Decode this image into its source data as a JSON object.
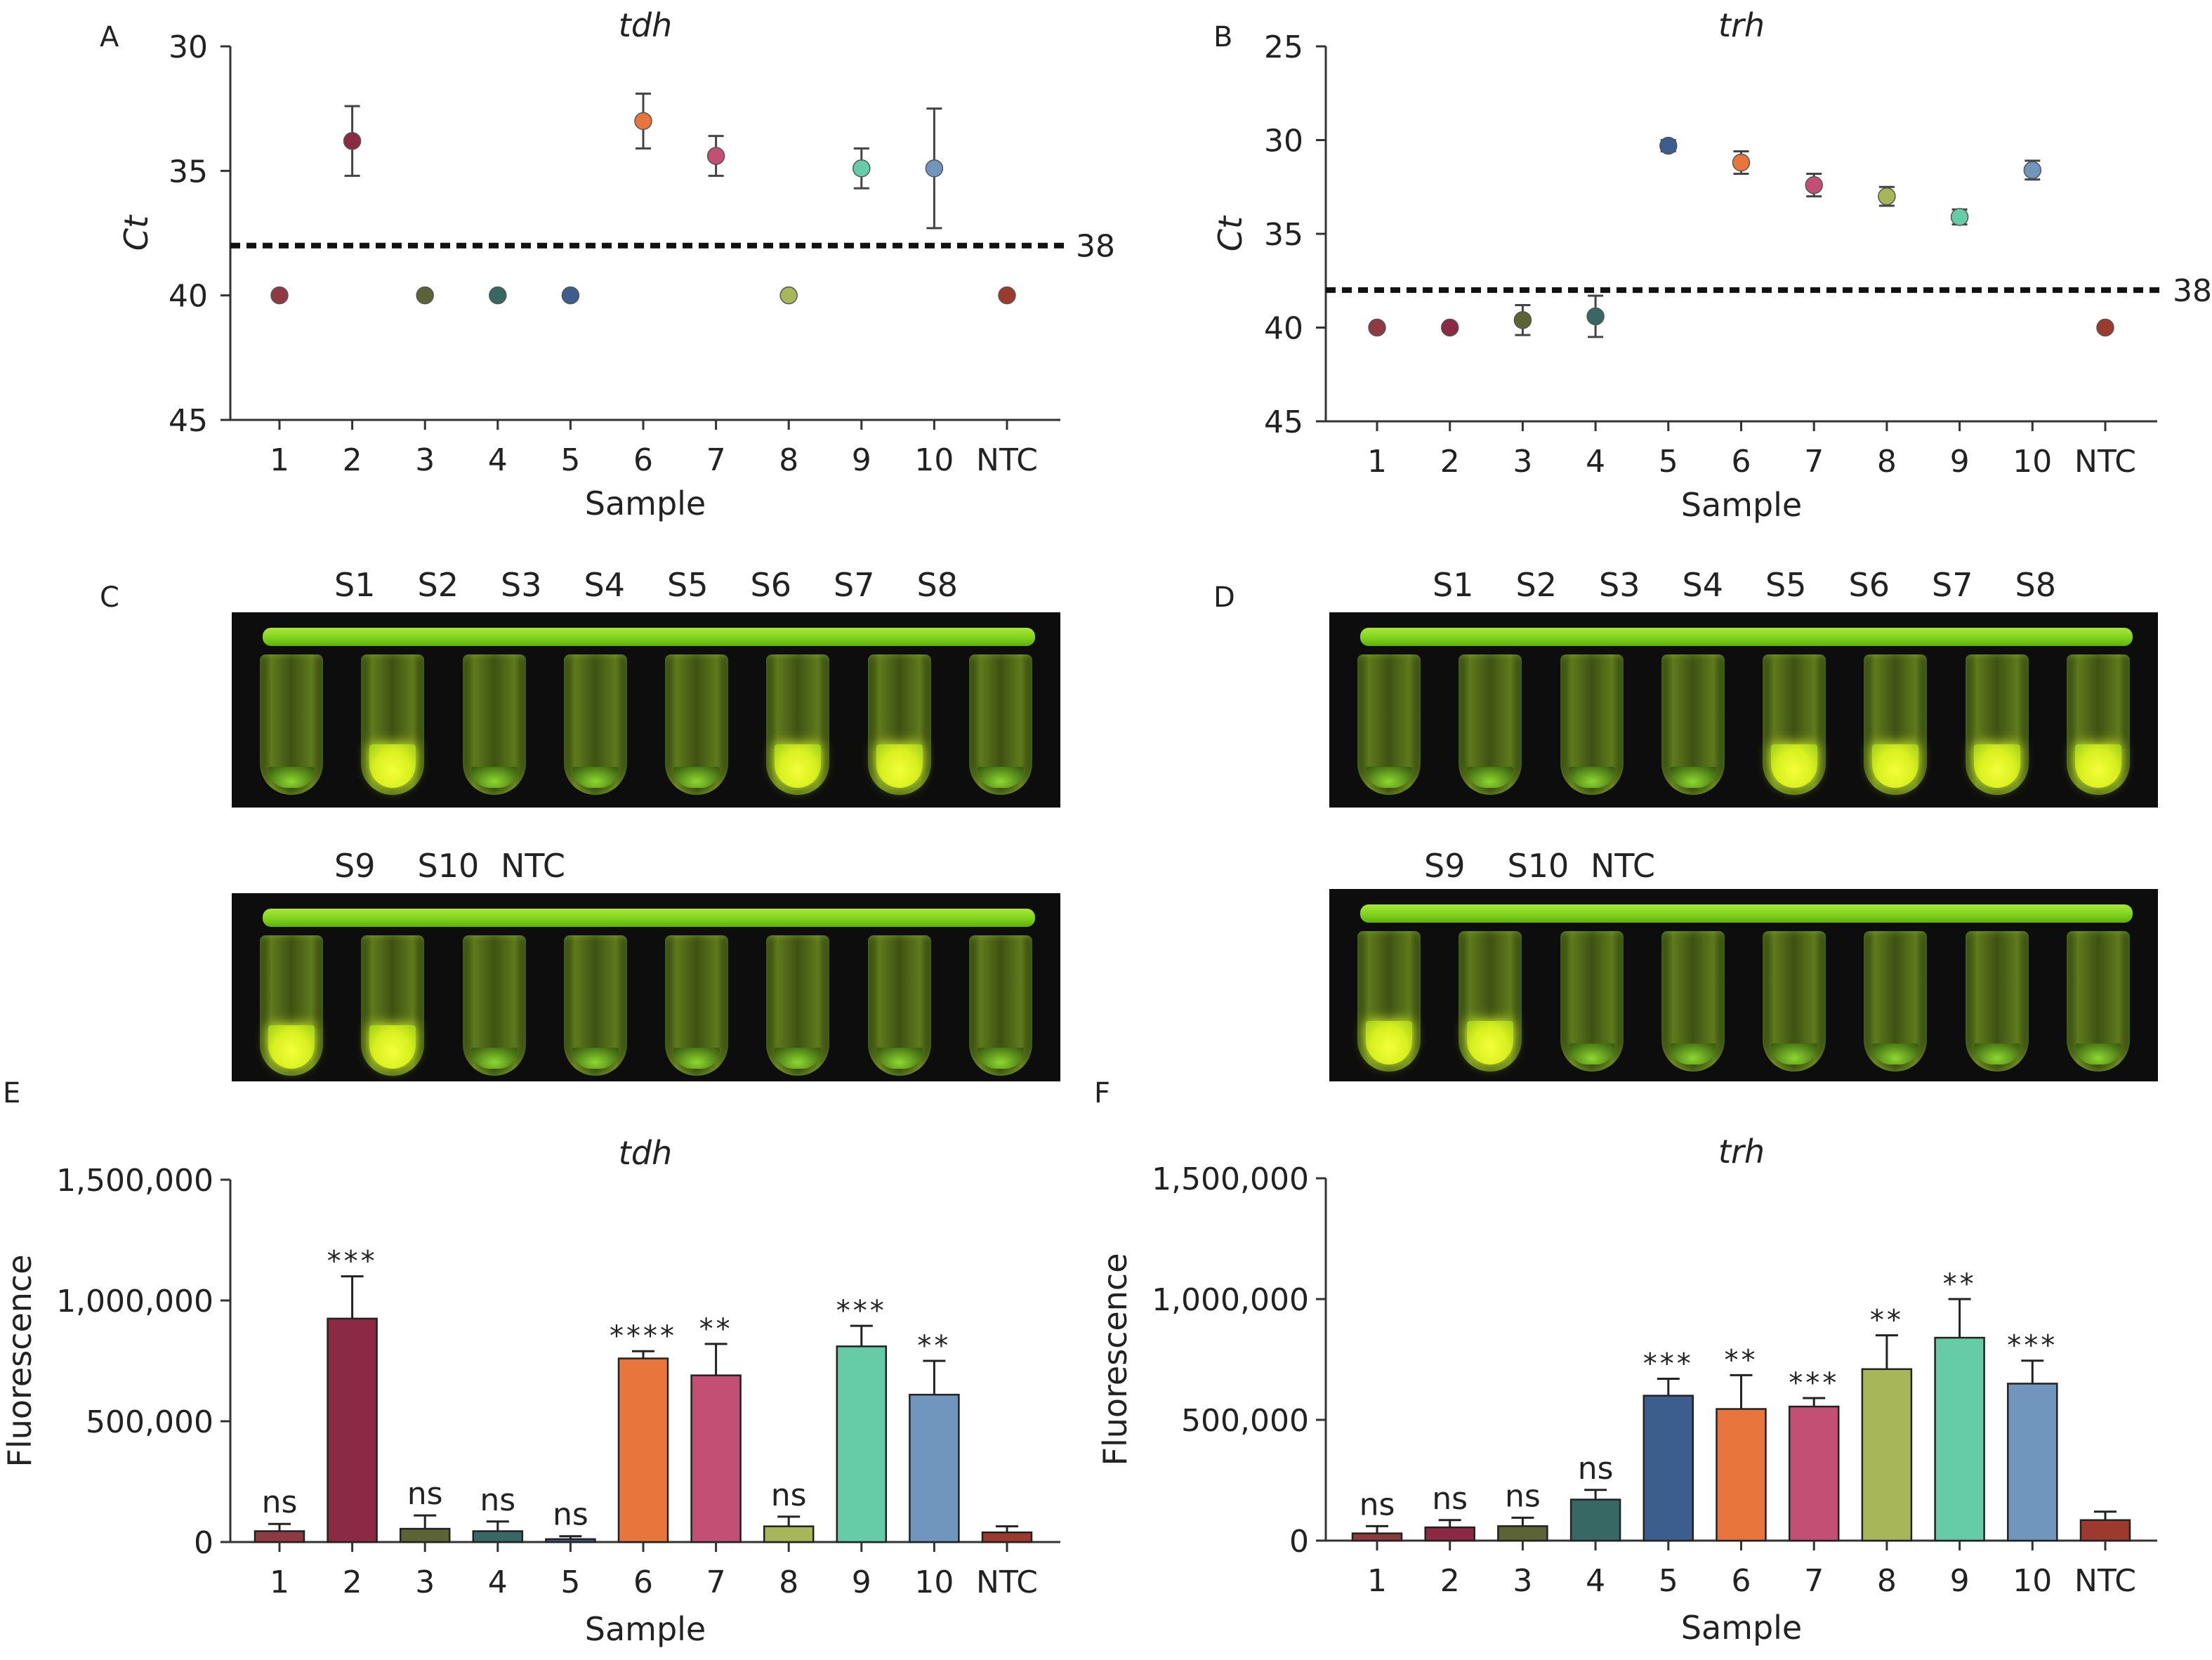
{
  "panel_letters": [
    "A",
    "B",
    "C",
    "D",
    "E",
    "F"
  ],
  "colors": [
    "#8e3a40",
    "#8c2a46",
    "#5c6436",
    "#386864",
    "#3c5e8e",
    "#e8763c",
    "#c44f74",
    "#a8b65a",
    "#66cca8",
    "#7096be",
    "#9c3a2e"
  ],
  "gels": [
    {
      "top_labels": [
        "S1",
        "S2",
        "S3",
        "S4",
        "S5",
        "S6",
        "S7",
        "S8"
      ],
      "bottom_labels": [
        "S9",
        "S10",
        "NTC"
      ],
      "top_positive": [
        false,
        true,
        false,
        false,
        false,
        true,
        true,
        false
      ],
      "bottom_positive": [
        true,
        true,
        false,
        false,
        false,
        false,
        false,
        false
      ]
    },
    {
      "top_labels": [
        "S1",
        "S2",
        "S3",
        "S4",
        "S5",
        "S6",
        "S7",
        "S8"
      ],
      "bottom_labels": [
        "S9",
        "S10",
        "NTC"
      ],
      "top_positive": [
        false,
        false,
        false,
        false,
        true,
        true,
        true,
        true
      ],
      "bottom_positive": [
        true,
        true,
        false,
        false,
        false,
        false,
        false,
        false
      ]
    }
  ],
  "chart_data": [
    {
      "type": "scatter",
      "panel": "A",
      "title": "tdh",
      "xlabel": "Sample",
      "ylabel": "Ct",
      "categories": [
        "1",
        "2",
        "3",
        "4",
        "5",
        "6",
        "7",
        "8",
        "9",
        "10",
        "NTC"
      ],
      "values": [
        40,
        33.8,
        40,
        40,
        40,
        33,
        34.4,
        40,
        34.9,
        34.9,
        40
      ],
      "errors": [
        0,
        1.4,
        0,
        0,
        0,
        1.1,
        0.8,
        0,
        0.8,
        2.4,
        0
      ],
      "ylim": [
        45,
        30
      ],
      "yticks": [
        30,
        35,
        40,
        45
      ],
      "yaxis_inverted": true,
      "threshold": 38,
      "threshold_label": "38"
    },
    {
      "type": "scatter",
      "panel": "B",
      "title": "trh",
      "xlabel": "Sample",
      "ylabel": "Ct",
      "categories": [
        "1",
        "2",
        "3",
        "4",
        "5",
        "6",
        "7",
        "8",
        "9",
        "10",
        "NTC"
      ],
      "values": [
        40,
        40,
        39.6,
        39.4,
        30.3,
        31.2,
        32.4,
        33,
        34.1,
        31.6,
        40
      ],
      "errors": [
        0,
        0,
        0.8,
        1.1,
        0.3,
        0.6,
        0.6,
        0.5,
        0.4,
        0.5,
        0
      ],
      "ylim": [
        45,
        25
      ],
      "yticks": [
        25,
        30,
        35,
        40,
        45
      ],
      "yaxis_inverted": true,
      "threshold": 38,
      "threshold_label": "38"
    },
    {
      "type": "bar",
      "panel": "E",
      "title": "tdh",
      "xlabel": "Sample",
      "ylabel": "Fluorescence",
      "categories": [
        "1",
        "2",
        "3",
        "4",
        "5",
        "6",
        "7",
        "8",
        "9",
        "10",
        "NTC"
      ],
      "values": [
        45000,
        925000,
        55000,
        45000,
        12000,
        760000,
        690000,
        65000,
        810000,
        610000,
        40000
      ],
      "errors": [
        30000,
        175000,
        55000,
        40000,
        12000,
        30000,
        130000,
        40000,
        85000,
        140000,
        25000
      ],
      "significance": [
        "ns",
        "***",
        "ns",
        "ns",
        "ns",
        "****",
        "**",
        "ns",
        "***",
        "**",
        ""
      ],
      "ylim": [
        0,
        1500000
      ],
      "ytick_labels": [
        "0",
        "500,000",
        "1,000,000",
        "1,500,000"
      ]
    },
    {
      "type": "bar",
      "panel": "F",
      "title": "trh",
      "xlabel": "Sample",
      "ylabel": "Fluorescence",
      "categories": [
        "1",
        "2",
        "3",
        "4",
        "5",
        "6",
        "7",
        "8",
        "9",
        "10",
        "NTC"
      ],
      "values": [
        30000,
        55000,
        60000,
        170000,
        600000,
        545000,
        555000,
        710000,
        840000,
        650000,
        85000
      ],
      "errors": [
        30000,
        30000,
        35000,
        40000,
        70000,
        140000,
        35000,
        140000,
        160000,
        95000,
        35000
      ],
      "significance": [
        "ns",
        "ns",
        "ns",
        "ns",
        "***",
        "**",
        "***",
        "**",
        "**",
        "***",
        ""
      ],
      "ylim": [
        0,
        1500000
      ],
      "ytick_labels": [
        "0",
        "500,000",
        "1,000,000",
        "1,500,000"
      ]
    }
  ]
}
